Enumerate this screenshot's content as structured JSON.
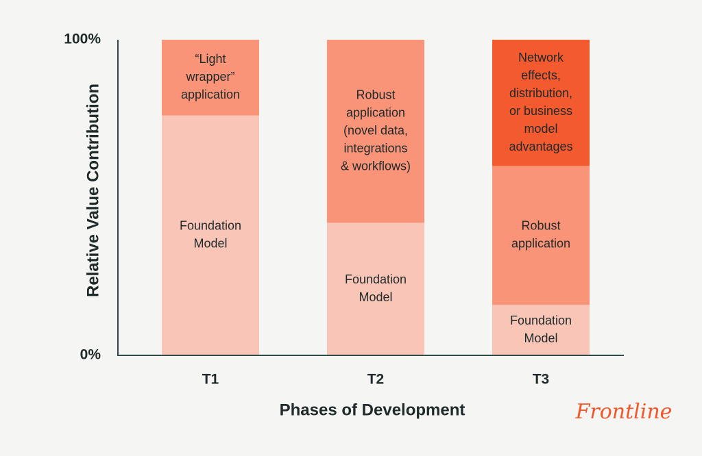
{
  "chart_data": {
    "type": "stacked_bar",
    "y_label": "Relative Value Contribution",
    "x_label": "Phases of Development",
    "categories": [
      "T1",
      "T2",
      "T3"
    ],
    "stacks": [
      [
        {
          "label": [
            "Foundation",
            "Model"
          ],
          "value": 76,
          "color": "#f8c5b7"
        },
        {
          "label": [
            "“Light",
            "wrapper”",
            "application"
          ],
          "value": 24,
          "color": "#f99479"
        }
      ],
      [
        {
          "label": [
            "Foundation",
            "Model"
          ],
          "value": 42,
          "color": "#f8c5b7"
        },
        {
          "label": [
            "Robust",
            "application",
            "(novel data,",
            "integrations",
            "& workflows)"
          ],
          "value": 58,
          "color": "#f99479"
        }
      ],
      [
        {
          "label": [
            "Foundation",
            "Model"
          ],
          "value": 16,
          "color": "#f8c5b7"
        },
        {
          "label": [
            "Robust",
            "application"
          ],
          "value": 44,
          "color": "#f99479"
        },
        {
          "label": [
            "Network",
            "effects,",
            "distribution,",
            "or business",
            "model",
            "advantages"
          ],
          "value": 40,
          "color": "#f45a30"
        }
      ]
    ],
    "ylim": [
      0,
      100
    ],
    "yticks": [
      {
        "value": 0,
        "label": "0%"
      },
      {
        "value": 100,
        "label": "100%"
      }
    ],
    "logo": "Frontline"
  }
}
